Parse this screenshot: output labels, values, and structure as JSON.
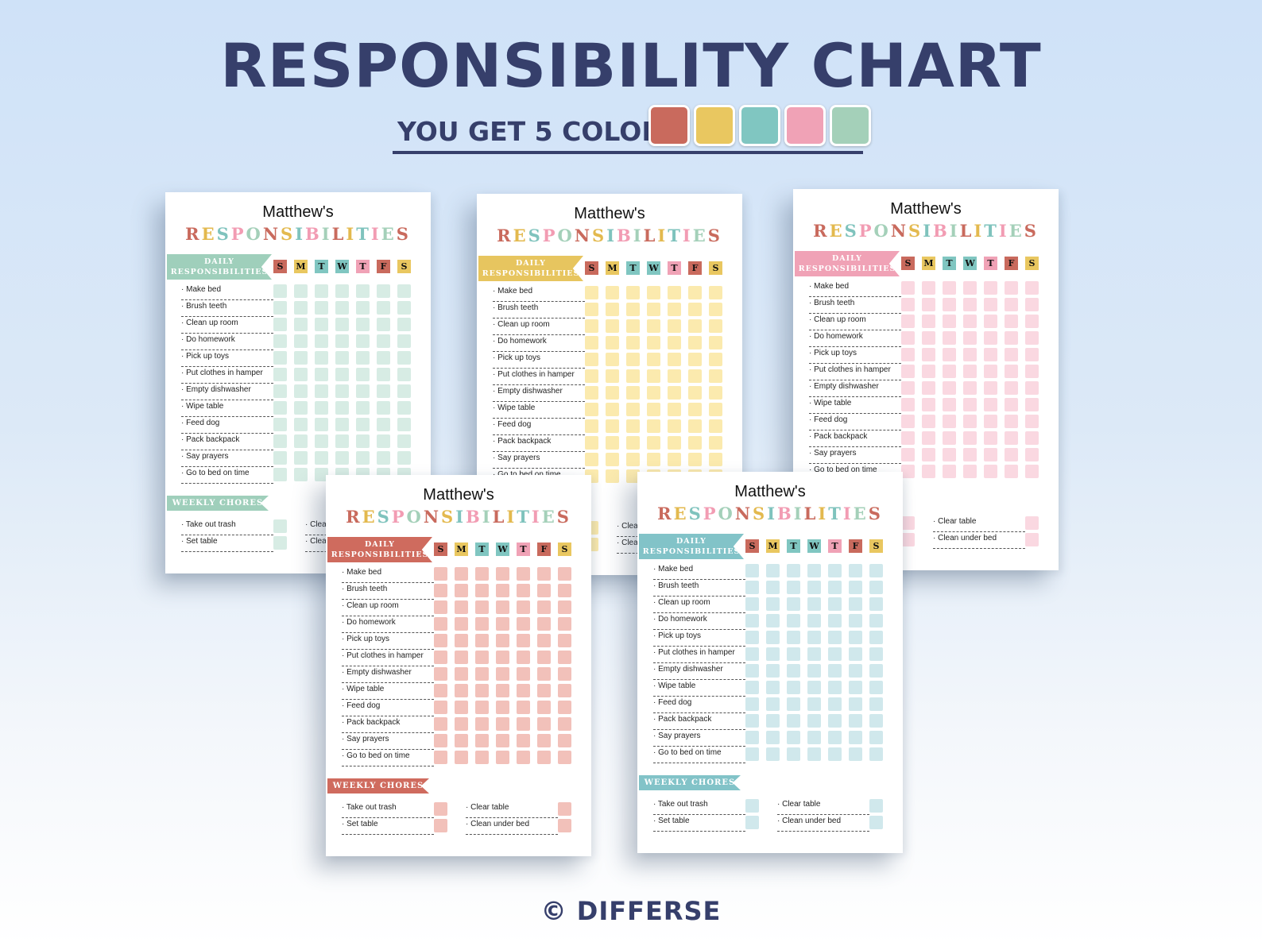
{
  "header": {
    "title": "RESPONSIBILITY CHART",
    "subtitle": "YOU GET 5 COLORS",
    "swatches": [
      "#c96a5d",
      "#e9c760",
      "#80c6c1",
      "#f0a2b6",
      "#a4d0b9"
    ]
  },
  "footer": {
    "copyright": "© DIFFERSE"
  },
  "sheet": {
    "name": "Matthew's",
    "title": "RESPONSIBILITIES",
    "title_letter_colors": [
      "#c96a5d",
      "#e3b94e",
      "#7fc3bd",
      "#f29cb3",
      "#a4d0b9"
    ],
    "daily_label_line1": "DAILY",
    "daily_label_line2": "RESPONSIBILITIES",
    "days": [
      "S",
      "M",
      "T",
      "W",
      "T",
      "F",
      "S"
    ],
    "day_colors": [
      "#c96a5d",
      "#e9c760",
      "#80c6c1",
      "#80c6c1",
      "#f0a2b6",
      "#c96a5d",
      "#e9c760"
    ],
    "tasks": [
      "Make bed",
      "Brush teeth",
      "Clean up room",
      "Do homework",
      "Pick up toys",
      "Put clothes in hamper",
      "Empty dishwasher",
      "Wipe table",
      "Feed dog",
      "Pack backpack",
      "Say prayers",
      "Go to bed on time"
    ],
    "weekly_label": "WEEKLY CHORES",
    "weekly_left": [
      "Take out trash",
      "Set table"
    ],
    "weekly_right": [
      "Clear table",
      "Clean under bed"
    ]
  },
  "variants": [
    {
      "name": "green",
      "ribbon": "#9fcfbb",
      "box": "#d7ece4"
    },
    {
      "name": "yellow",
      "ribbon": "#e7c55f",
      "box": "#fbeaae"
    },
    {
      "name": "pink",
      "ribbon": "#f0a2b6",
      "box": "#fad8e1"
    },
    {
      "name": "red",
      "ribbon": "#cf6b5e",
      "box": "#f2c1ba"
    },
    {
      "name": "blue",
      "ribbon": "#82c3c8",
      "box": "#d0e8ec"
    }
  ]
}
